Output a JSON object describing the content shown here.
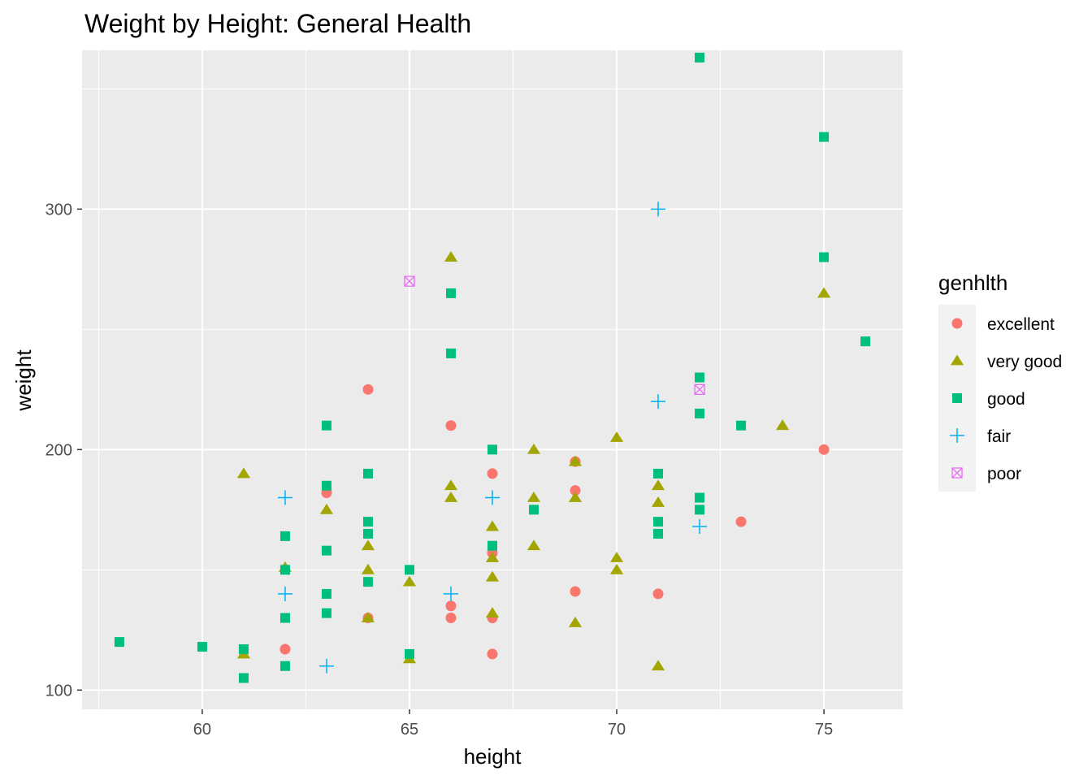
{
  "chart_data": {
    "type": "scatter",
    "title": "Weight by Height: General Health",
    "xlabel": "height",
    "ylabel": "weight",
    "xlim": [
      57.1,
      76.9
    ],
    "ylim": [
      92,
      366
    ],
    "x_ticks": [
      60,
      65,
      70,
      75
    ],
    "y_ticks": [
      100,
      200,
      300
    ],
    "grid": true,
    "legend": {
      "title": "genhlth",
      "position": "right",
      "entries": [
        "excellent",
        "very good",
        "good",
        "fair",
        "poor"
      ]
    },
    "series": [
      {
        "name": "excellent",
        "shape": "circle",
        "color": "#F8766D",
        "points": [
          [
            62,
            117
          ],
          [
            63,
            182
          ],
          [
            64,
            225
          ],
          [
            64,
            130
          ],
          [
            66,
            210
          ],
          [
            66,
            135
          ],
          [
            66,
            130
          ],
          [
            67,
            190
          ],
          [
            67,
            157
          ],
          [
            67,
            130
          ],
          [
            67,
            115
          ],
          [
            69,
            195
          ],
          [
            69,
            183
          ],
          [
            69,
            141
          ],
          [
            71,
            140
          ],
          [
            73,
            170
          ],
          [
            75,
            200
          ]
        ]
      },
      {
        "name": "very good",
        "shape": "triangle",
        "color": "#A3A500",
        "points": [
          [
            61,
            190
          ],
          [
            61,
            115
          ],
          [
            62,
            151
          ],
          [
            63,
            175
          ],
          [
            64,
            160
          ],
          [
            64,
            150
          ],
          [
            64,
            130
          ],
          [
            65,
            145
          ],
          [
            65,
            113
          ],
          [
            66,
            280
          ],
          [
            66,
            185
          ],
          [
            66,
            180
          ],
          [
            67,
            168
          ],
          [
            67,
            155
          ],
          [
            67,
            147
          ],
          [
            67,
            132
          ],
          [
            68,
            200
          ],
          [
            68,
            180
          ],
          [
            68,
            160
          ],
          [
            69,
            195
          ],
          [
            69,
            180
          ],
          [
            69,
            128
          ],
          [
            70,
            205
          ],
          [
            70,
            155
          ],
          [
            70,
            150
          ],
          [
            71,
            185
          ],
          [
            71,
            178
          ],
          [
            71,
            110
          ],
          [
            74,
            210
          ],
          [
            75,
            265
          ]
        ]
      },
      {
        "name": "good",
        "shape": "square",
        "color": "#00BF7D",
        "points": [
          [
            58,
            120
          ],
          [
            60,
            118
          ],
          [
            61,
            117
          ],
          [
            61,
            105
          ],
          [
            62,
            164
          ],
          [
            62,
            150
          ],
          [
            62,
            130
          ],
          [
            62,
            110
          ],
          [
            63,
            210
          ],
          [
            63,
            185
          ],
          [
            63,
            158
          ],
          [
            63,
            140
          ],
          [
            63,
            132
          ],
          [
            64,
            190
          ],
          [
            64,
            170
          ],
          [
            64,
            165
          ],
          [
            64,
            145
          ],
          [
            65,
            150
          ],
          [
            65,
            115
          ],
          [
            66,
            265
          ],
          [
            66,
            240
          ],
          [
            67,
            200
          ],
          [
            67,
            160
          ],
          [
            68,
            175
          ],
          [
            71,
            190
          ],
          [
            71,
            170
          ],
          [
            71,
            165
          ],
          [
            72,
            363
          ],
          [
            72,
            230
          ],
          [
            72,
            215
          ],
          [
            72,
            180
          ],
          [
            72,
            175
          ],
          [
            73,
            210
          ],
          [
            75,
            330
          ],
          [
            75,
            280
          ],
          [
            76,
            245
          ]
        ]
      },
      {
        "name": "fair",
        "shape": "plus",
        "color": "#00B0F6",
        "points": [
          [
            62,
            180
          ],
          [
            62,
            140
          ],
          [
            63,
            110
          ],
          [
            66,
            140
          ],
          [
            67,
            180
          ],
          [
            71,
            300
          ],
          [
            71,
            220
          ],
          [
            72,
            168
          ]
        ]
      },
      {
        "name": "poor",
        "shape": "square-cross",
        "color": "#E76BF3",
        "points": [
          [
            65,
            270
          ],
          [
            72,
            225
          ]
        ]
      }
    ]
  }
}
